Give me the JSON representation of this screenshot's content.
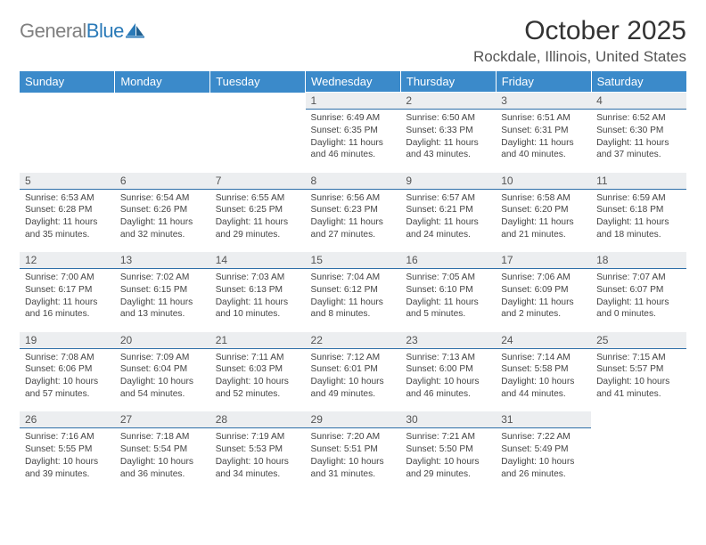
{
  "logo": {
    "gray": "General",
    "blue": "Blue"
  },
  "title": "October 2025",
  "location": "Rockdale, Illinois, United States",
  "colors": {
    "header_bg": "#3b8aca",
    "header_text": "#ffffff",
    "daynum_bg": "#eceef0",
    "daynum_border": "#2f6fa8",
    "body_text": "#444444",
    "logo_gray": "#808080",
    "logo_blue": "#2a7ab8"
  },
  "typography": {
    "title_fontsize": 30,
    "location_fontsize": 17,
    "weekday_fontsize": 13,
    "daynum_fontsize": 12,
    "cell_fontsize": 10.2
  },
  "weekdays": [
    "Sunday",
    "Monday",
    "Tuesday",
    "Wednesday",
    "Thursday",
    "Friday",
    "Saturday"
  ],
  "weeks": [
    [
      null,
      null,
      null,
      {
        "n": "1",
        "sr": "6:49 AM",
        "ss": "6:35 PM",
        "dh": "11",
        "dm": "46"
      },
      {
        "n": "2",
        "sr": "6:50 AM",
        "ss": "6:33 PM",
        "dh": "11",
        "dm": "43"
      },
      {
        "n": "3",
        "sr": "6:51 AM",
        "ss": "6:31 PM",
        "dh": "11",
        "dm": "40"
      },
      {
        "n": "4",
        "sr": "6:52 AM",
        "ss": "6:30 PM",
        "dh": "11",
        "dm": "37"
      }
    ],
    [
      {
        "n": "5",
        "sr": "6:53 AM",
        "ss": "6:28 PM",
        "dh": "11",
        "dm": "35"
      },
      {
        "n": "6",
        "sr": "6:54 AM",
        "ss": "6:26 PM",
        "dh": "11",
        "dm": "32"
      },
      {
        "n": "7",
        "sr": "6:55 AM",
        "ss": "6:25 PM",
        "dh": "11",
        "dm": "29"
      },
      {
        "n": "8",
        "sr": "6:56 AM",
        "ss": "6:23 PM",
        "dh": "11",
        "dm": "27"
      },
      {
        "n": "9",
        "sr": "6:57 AM",
        "ss": "6:21 PM",
        "dh": "11",
        "dm": "24"
      },
      {
        "n": "10",
        "sr": "6:58 AM",
        "ss": "6:20 PM",
        "dh": "11",
        "dm": "21"
      },
      {
        "n": "11",
        "sr": "6:59 AM",
        "ss": "6:18 PM",
        "dh": "11",
        "dm": "18"
      }
    ],
    [
      {
        "n": "12",
        "sr": "7:00 AM",
        "ss": "6:17 PM",
        "dh": "11",
        "dm": "16"
      },
      {
        "n": "13",
        "sr": "7:02 AM",
        "ss": "6:15 PM",
        "dh": "11",
        "dm": "13"
      },
      {
        "n": "14",
        "sr": "7:03 AM",
        "ss": "6:13 PM",
        "dh": "11",
        "dm": "10"
      },
      {
        "n": "15",
        "sr": "7:04 AM",
        "ss": "6:12 PM",
        "dh": "11",
        "dm": "8"
      },
      {
        "n": "16",
        "sr": "7:05 AM",
        "ss": "6:10 PM",
        "dh": "11",
        "dm": "5"
      },
      {
        "n": "17",
        "sr": "7:06 AM",
        "ss": "6:09 PM",
        "dh": "11",
        "dm": "2"
      },
      {
        "n": "18",
        "sr": "7:07 AM",
        "ss": "6:07 PM",
        "dh": "11",
        "dm": "0"
      }
    ],
    [
      {
        "n": "19",
        "sr": "7:08 AM",
        "ss": "6:06 PM",
        "dh": "10",
        "dm": "57"
      },
      {
        "n": "20",
        "sr": "7:09 AM",
        "ss": "6:04 PM",
        "dh": "10",
        "dm": "54"
      },
      {
        "n": "21",
        "sr": "7:11 AM",
        "ss": "6:03 PM",
        "dh": "10",
        "dm": "52"
      },
      {
        "n": "22",
        "sr": "7:12 AM",
        "ss": "6:01 PM",
        "dh": "10",
        "dm": "49"
      },
      {
        "n": "23",
        "sr": "7:13 AM",
        "ss": "6:00 PM",
        "dh": "10",
        "dm": "46"
      },
      {
        "n": "24",
        "sr": "7:14 AM",
        "ss": "5:58 PM",
        "dh": "10",
        "dm": "44"
      },
      {
        "n": "25",
        "sr": "7:15 AM",
        "ss": "5:57 PM",
        "dh": "10",
        "dm": "41"
      }
    ],
    [
      {
        "n": "26",
        "sr": "7:16 AM",
        "ss": "5:55 PM",
        "dh": "10",
        "dm": "39"
      },
      {
        "n": "27",
        "sr": "7:18 AM",
        "ss": "5:54 PM",
        "dh": "10",
        "dm": "36"
      },
      {
        "n": "28",
        "sr": "7:19 AM",
        "ss": "5:53 PM",
        "dh": "10",
        "dm": "34"
      },
      {
        "n": "29",
        "sr": "7:20 AM",
        "ss": "5:51 PM",
        "dh": "10",
        "dm": "31"
      },
      {
        "n": "30",
        "sr": "7:21 AM",
        "ss": "5:50 PM",
        "dh": "10",
        "dm": "29"
      },
      {
        "n": "31",
        "sr": "7:22 AM",
        "ss": "5:49 PM",
        "dh": "10",
        "dm": "26"
      },
      null
    ]
  ]
}
